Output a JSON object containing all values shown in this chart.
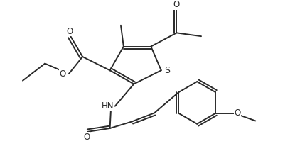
{
  "background_color": "#ffffff",
  "line_color": "#2a2a2a",
  "line_width": 1.4,
  "font_size": 8.5,
  "figsize": [
    4.15,
    2.37
  ],
  "dpi": 100,
  "xlim": [
    0,
    8.3
  ],
  "ylim": [
    0,
    4.74
  ]
}
